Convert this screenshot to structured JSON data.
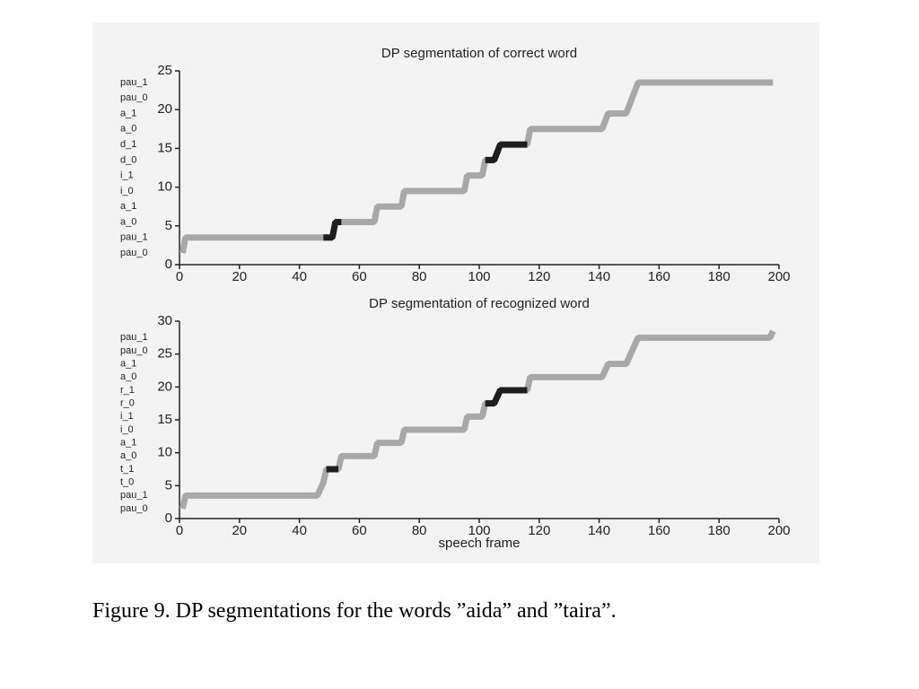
{
  "chart_data": [
    {
      "type": "line",
      "title": "DP segmentation of correct word",
      "x": [
        1,
        2,
        48,
        51,
        52,
        54,
        65,
        66,
        74,
        75,
        95,
        96,
        101,
        102,
        105,
        107,
        116,
        117,
        141,
        143,
        149,
        151,
        153,
        198
      ],
      "series": [
        {
          "color": "#a8a8a8",
          "values": [
            1.5,
            3.5,
            3.5,
            3.5,
            5.5,
            5.5,
            5.5,
            7.5,
            7.5,
            9.5,
            9.5,
            11.5,
            11.5,
            13.5,
            13.5,
            15.5,
            15.5,
            17.5,
            17.5,
            19.5,
            19.5,
            21.5,
            23.5,
            23.5
          ]
        },
        {
          "color": "#1e1e1e",
          "values": [
            null,
            null,
            3.5,
            3.5,
            5.5,
            5.5,
            null,
            null,
            null,
            null,
            null,
            null,
            null,
            13.5,
            13.5,
            15.5,
            15.5,
            null,
            null,
            null,
            null,
            null,
            null,
            null
          ]
        }
      ],
      "xlim": [
        0,
        200
      ],
      "xticks": [
        0,
        20,
        40,
        60,
        80,
        100,
        120,
        140,
        160,
        180,
        200
      ],
      "ylim": [
        0,
        25
      ],
      "yticks": [
        0,
        5,
        10,
        15,
        20,
        25
      ],
      "state_labels": [
        {
          "value": 1.5,
          "label": "pau_0"
        },
        {
          "value": 3.5,
          "label": "pau_1"
        },
        {
          "value": 5.5,
          "label": "a_0"
        },
        {
          "value": 7.5,
          "label": "a_1"
        },
        {
          "value": 9.5,
          "label": "i_0"
        },
        {
          "value": 11.5,
          "label": "i_1"
        },
        {
          "value": 13.5,
          "label": "d_0"
        },
        {
          "value": 15.5,
          "label": "d_1"
        },
        {
          "value": 17.5,
          "label": "a_0"
        },
        {
          "value": 19.5,
          "label": "a_1"
        },
        {
          "value": 21.5,
          "label": "pau_0"
        },
        {
          "value": 23.5,
          "label": "pau_1"
        }
      ]
    },
    {
      "type": "line",
      "title": "DP segmentation of recognized word",
      "xlabel": "speech frame",
      "x": [
        1,
        2,
        46,
        48,
        49,
        53,
        54,
        65,
        66,
        74,
        75,
        95,
        96,
        101,
        102,
        105,
        107,
        116,
        117,
        141,
        143,
        149,
        151,
        153,
        197,
        198
      ],
      "series": [
        {
          "color": "#a8a8a8",
          "values": [
            1.5,
            3.5,
            3.5,
            5.5,
            7.5,
            7.5,
            9.5,
            9.5,
            11.5,
            11.5,
            13.5,
            13.5,
            15.5,
            15.5,
            17.5,
            17.5,
            19.5,
            19.5,
            21.5,
            21.5,
            23.5,
            23.5,
            25.5,
            27.5,
            27.5,
            28.5
          ]
        },
        {
          "color": "#1e1e1e",
          "values": [
            null,
            null,
            null,
            null,
            7.5,
            7.5,
            null,
            null,
            null,
            null,
            null,
            null,
            null,
            null,
            17.5,
            17.5,
            19.5,
            19.5,
            null,
            null,
            null,
            null,
            null,
            null,
            null,
            null
          ]
        }
      ],
      "xlim": [
        0,
        200
      ],
      "xticks": [
        0,
        20,
        40,
        60,
        80,
        100,
        120,
        140,
        160,
        180,
        200
      ],
      "ylim": [
        0,
        30
      ],
      "yticks": [
        0,
        5,
        10,
        15,
        20,
        25,
        30
      ],
      "state_labels": [
        {
          "value": 1.5,
          "label": "pau_0"
        },
        {
          "value": 3.5,
          "label": "pau_1"
        },
        {
          "value": 5.5,
          "label": "t_0"
        },
        {
          "value": 7.5,
          "label": "t_1"
        },
        {
          "value": 9.5,
          "label": "a_0"
        },
        {
          "value": 11.5,
          "label": "a_1"
        },
        {
          "value": 13.5,
          "label": "i_0"
        },
        {
          "value": 15.5,
          "label": "i_1"
        },
        {
          "value": 17.5,
          "label": "r_0"
        },
        {
          "value": 19.5,
          "label": "r_1"
        },
        {
          "value": 21.5,
          "label": "a_0"
        },
        {
          "value": 23.5,
          "label": "a_1"
        },
        {
          "value": 25.5,
          "label": "pau_0"
        },
        {
          "value": 27.5,
          "label": "pau_1"
        }
      ]
    }
  ],
  "caption": "Figure 9. DP segmentations for the words ”aida” and ”taira”."
}
